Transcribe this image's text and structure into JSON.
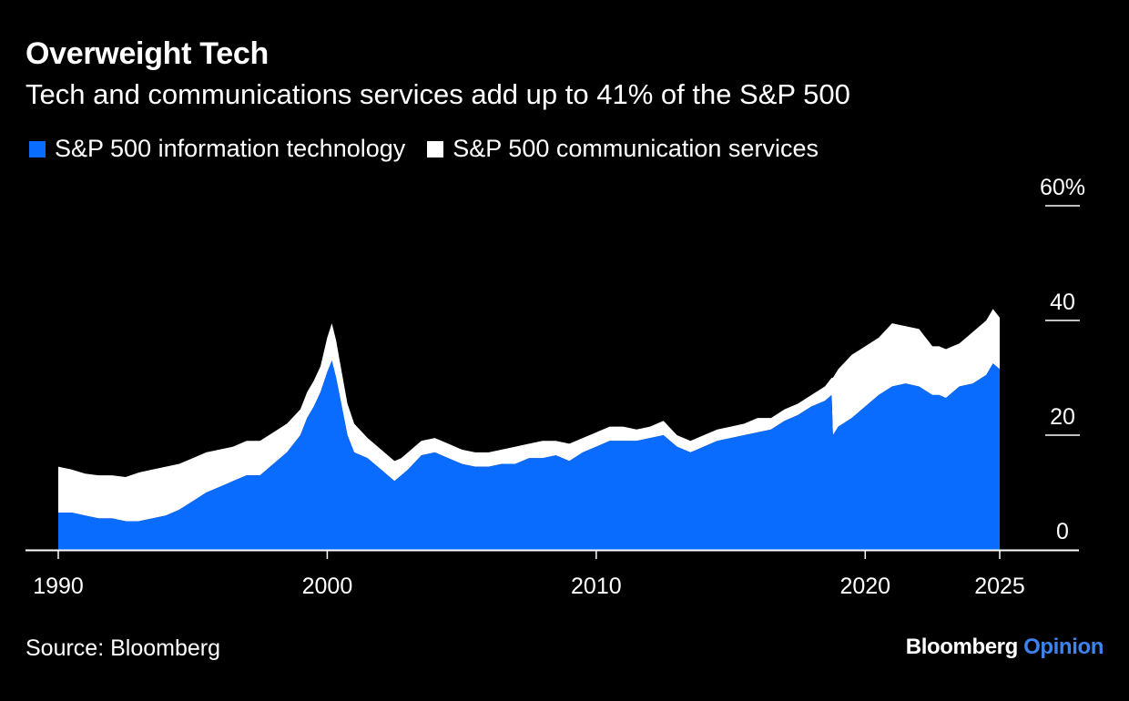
{
  "title": "Overweight Tech",
  "subtitle": "Tech and communications services add up to 41% of the S&P 500",
  "source": "Source: Bloomberg",
  "brand": {
    "main": "Bloomberg",
    "accent": "Opinion",
    "accent_color": "#3c84f0"
  },
  "colors": {
    "background": "#000000",
    "tech": "#0a6cff",
    "comm": "#ffffff"
  },
  "chart_data": {
    "type": "area",
    "stacked": true,
    "title": "Overweight Tech",
    "subtitle": "Tech and communications services add up to 41% of the S&P 500",
    "ylim": [
      0,
      60
    ],
    "y_unit": "%",
    "y_ticks": [
      {
        "value": 0,
        "label": "0"
      },
      {
        "value": 20,
        "label": "20"
      },
      {
        "value": 40,
        "label": "40"
      },
      {
        "value": 60,
        "label": "60%"
      }
    ],
    "x_ticks": [
      {
        "value": 1990,
        "label": "1990"
      },
      {
        "value": 2000,
        "label": "2000"
      },
      {
        "value": 2010,
        "label": "2010"
      },
      {
        "value": 2020,
        "label": "2020"
      },
      {
        "value": 2025,
        "label": "2025"
      }
    ],
    "xlim": [
      1989,
      2028
    ],
    "legend_position": "top-left",
    "x": [
      1990.0,
      1990.5,
      1991.0,
      1991.5,
      1992.0,
      1992.5,
      1993.0,
      1993.5,
      1994.0,
      1994.5,
      1995.0,
      1995.5,
      1996.0,
      1996.5,
      1997.0,
      1997.5,
      1998.0,
      1998.5,
      1999.0,
      1999.25,
      1999.5,
      1999.75,
      2000.0,
      2000.17,
      2000.33,
      2000.5,
      2000.75,
      2001.0,
      2001.5,
      2001.75,
      2002.0,
      2002.5,
      2002.75,
      2003.0,
      2003.5,
      2004.0,
      2004.5,
      2005.0,
      2005.5,
      2006.0,
      2006.5,
      2007.0,
      2007.5,
      2008.0,
      2008.5,
      2009.0,
      2009.5,
      2010.0,
      2010.5,
      2011.0,
      2011.5,
      2012.0,
      2012.5,
      2013.0,
      2013.5,
      2014.0,
      2014.5,
      2015.0,
      2015.5,
      2016.0,
      2016.5,
      2017.0,
      2017.5,
      2018.0,
      2018.5,
      2018.75,
      2018.8,
      2019.0,
      2019.5,
      2020.0,
      2020.5,
      2021.0,
      2021.5,
      2022.0,
      2022.5,
      2022.75,
      2023.0,
      2023.5,
      2024.0,
      2024.5,
      2024.75,
      2025.0
    ],
    "series": [
      {
        "name": "S&P 500 information technology",
        "color": "#0a6cff",
        "values": [
          6.5,
          6.5,
          6.0,
          5.5,
          5.5,
          5.0,
          5.0,
          5.5,
          6.0,
          7.0,
          8.5,
          10.0,
          11.0,
          12.0,
          13.0,
          13.0,
          15.0,
          17.0,
          20.0,
          23.0,
          25.0,
          27.5,
          31.0,
          33.0,
          30.0,
          26.0,
          20.0,
          17.0,
          16.0,
          15.0,
          14.0,
          12.0,
          13.0,
          14.0,
          16.5,
          17.0,
          16.0,
          15.0,
          14.5,
          14.5,
          15.0,
          15.0,
          16.0,
          16.0,
          16.5,
          15.5,
          17.0,
          18.0,
          19.0,
          19.0,
          19.0,
          19.5,
          20.0,
          18.0,
          17.0,
          18.0,
          19.0,
          19.5,
          20.0,
          20.5,
          21.0,
          22.5,
          23.5,
          25.0,
          26.0,
          27.0,
          20.0,
          21.5,
          23.0,
          25.0,
          27.0,
          28.5,
          29.0,
          28.5,
          27.0,
          27.0,
          26.5,
          28.5,
          29.0,
          30.5,
          32.5,
          31.5
        ]
      },
      {
        "name": "S&P 500 communication services",
        "color": "#ffffff",
        "values": [
          8.0,
          7.5,
          7.3,
          7.5,
          7.5,
          7.7,
          8.5,
          8.5,
          8.5,
          8.0,
          7.5,
          7.0,
          6.5,
          6.0,
          6.0,
          6.0,
          5.5,
          5.0,
          4.5,
          4.5,
          4.5,
          4.5,
          6.0,
          6.5,
          6.5,
          6.0,
          5.5,
          5.0,
          3.5,
          3.5,
          3.5,
          3.5,
          3.0,
          3.0,
          2.5,
          2.5,
          2.5,
          2.5,
          2.5,
          2.5,
          2.5,
          3.0,
          2.5,
          3.0,
          2.5,
          3.0,
          2.5,
          2.5,
          2.5,
          2.5,
          2.0,
          2.0,
          2.5,
          2.0,
          2.0,
          2.0,
          2.0,
          2.0,
          2.0,
          2.5,
          2.0,
          2.0,
          2.0,
          2.0,
          2.5,
          3.0,
          10.0,
          10.0,
          11.0,
          10.5,
          10.0,
          11.0,
          10.0,
          10.0,
          8.5,
          8.5,
          8.5,
          7.5,
          9.0,
          9.5,
          9.5,
          9.0
        ]
      }
    ]
  }
}
